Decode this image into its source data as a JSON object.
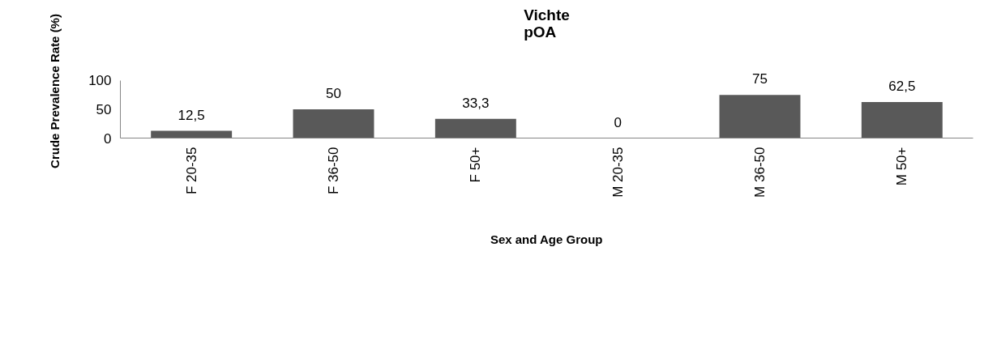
{
  "chart_data": {
    "type": "bar",
    "title": "Vichte\npOA",
    "xlabel": "Sex and Age Group",
    "ylabel": "Crude Prevalence Rate (%)",
    "categories": [
      "F 20-35",
      "F 36-50",
      "F 50+",
      "M 20-35",
      "M 36-50",
      "M 50+"
    ],
    "values": [
      12.5,
      50,
      33.3,
      0,
      75,
      62.5
    ],
    "value_labels": [
      "12,5",
      "50",
      "33,3",
      "0",
      "75",
      "62,5"
    ],
    "color": "#595959",
    "ylim": [
      0,
      100
    ],
    "yticks": [
      0,
      50,
      100
    ],
    "grid": false
  }
}
